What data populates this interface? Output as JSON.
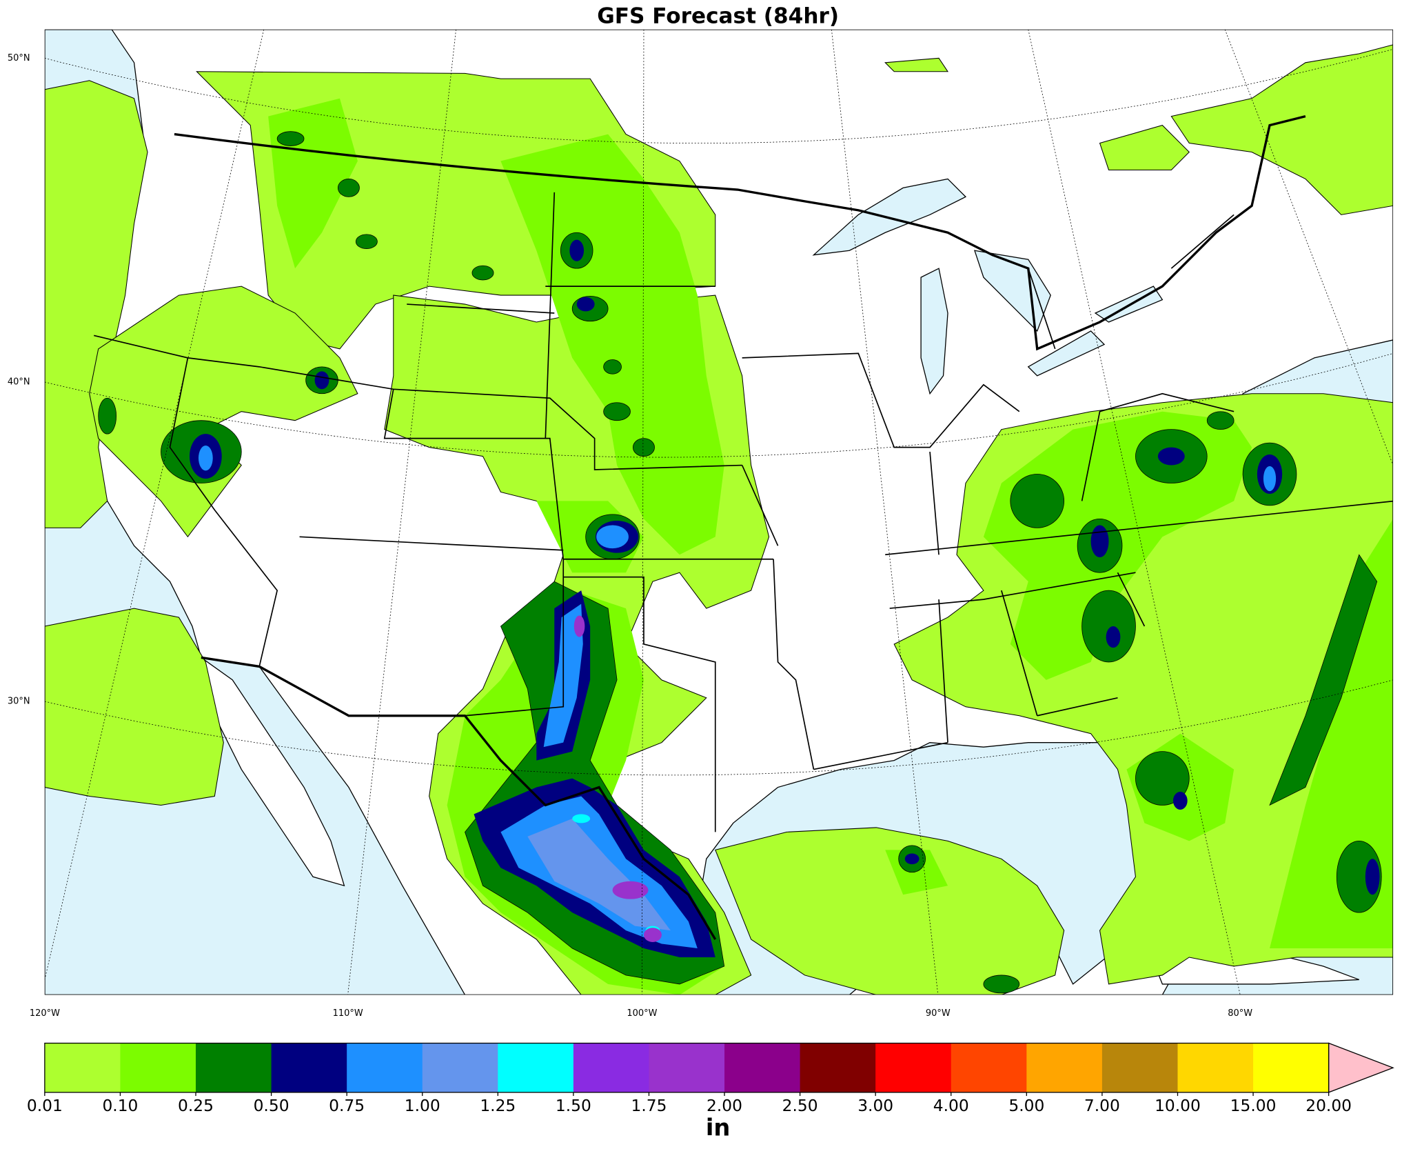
{
  "title": "GFS Forecast (84hr)",
  "lat_labels": [
    "50°N",
    "40°N",
    "30°N"
  ],
  "lon_labels": [
    "120°W",
    "110°W",
    "100°W",
    "90°W",
    "80°W"
  ],
  "colorbar": {
    "levels": [
      "0.01",
      "0.10",
      "0.25",
      "0.50",
      "0.75",
      "1.00",
      "1.25",
      "1.50",
      "1.75",
      "2.00",
      "2.50",
      "3.00",
      "4.00",
      "5.00",
      "7.00",
      "10.00",
      "15.00",
      "20.00"
    ],
    "colors": [
      "#adff2f",
      "#7cfc00",
      "#008000",
      "#000080",
      "#1e90ff",
      "#6495ed",
      "#00ffff",
      "#8a2be2",
      "#9932cc",
      "#8b008b",
      "#800000",
      "#ff0000",
      "#ff4500",
      "#ffa500",
      "#b8860b",
      "#ffd700",
      "#ffff00"
    ],
    "extend_color": "#ffc0cb",
    "label": "in"
  }
}
